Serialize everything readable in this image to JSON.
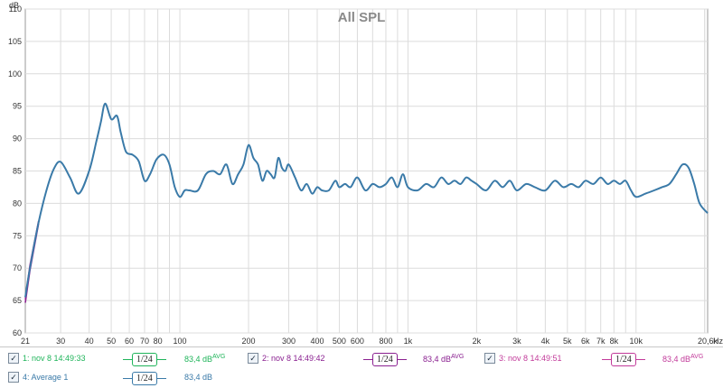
{
  "chart_data": {
    "type": "line",
    "title": "All SPL",
    "ylabel": "dB",
    "xunit": "Hz",
    "xscale": "log",
    "xlim": [
      21,
      20600
    ],
    "ylim": [
      60,
      110
    ],
    "y_ticks": [
      60,
      65,
      70,
      75,
      80,
      85,
      90,
      95,
      100,
      105,
      110
    ],
    "x_ticks": [
      {
        "v": 21,
        "label": "21"
      },
      {
        "v": 30,
        "label": "30"
      },
      {
        "v": 40,
        "label": "40"
      },
      {
        "v": 50,
        "label": "50"
      },
      {
        "v": 60,
        "label": "60"
      },
      {
        "v": 70,
        "label": "70"
      },
      {
        "v": 80,
        "label": "80"
      },
      {
        "v": 100,
        "label": "100"
      },
      {
        "v": 200,
        "label": "200"
      },
      {
        "v": 300,
        "label": "300"
      },
      {
        "v": 400,
        "label": "400"
      },
      {
        "v": 500,
        "label": "500"
      },
      {
        "v": 600,
        "label": "600"
      },
      {
        "v": 800,
        "label": "800"
      },
      {
        "v": 1000,
        "label": "1k"
      },
      {
        "v": 2000,
        "label": "2k"
      },
      {
        "v": 3000,
        "label": "3k"
      },
      {
        "v": 4000,
        "label": "4k"
      },
      {
        "v": 5000,
        "label": "5k"
      },
      {
        "v": 6000,
        "label": "6k"
      },
      {
        "v": 7000,
        "label": "7k"
      },
      {
        "v": 8000,
        "label": "8k"
      },
      {
        "v": 10000,
        "label": "10k"
      },
      {
        "v": 20600,
        "label": "20,6k"
      }
    ],
    "grid": true,
    "series": [
      {
        "name": "4: Average 1",
        "color": "#3a7aa8",
        "x": [
          21,
          22,
          24,
          26,
          28,
          30,
          33,
          36,
          40,
          43,
          45,
          47,
          50,
          53,
          55,
          58,
          62,
          66,
          70,
          74,
          79,
          85,
          90,
          95,
          100,
          105,
          110,
          120,
          130,
          140,
          150,
          160,
          170,
          180,
          190,
          200,
          210,
          220,
          230,
          240,
          250,
          260,
          270,
          280,
          290,
          300,
          320,
          340,
          360,
          380,
          400,
          420,
          450,
          480,
          500,
          530,
          560,
          600,
          650,
          700,
          750,
          800,
          850,
          900,
          950,
          1000,
          1100,
          1200,
          1300,
          1400,
          1500,
          1600,
          1700,
          1800,
          1900,
          2000,
          2200,
          2400,
          2600,
          2800,
          3000,
          3300,
          3600,
          4000,
          4400,
          4800,
          5200,
          5600,
          6000,
          6500,
          7000,
          7500,
          8000,
          8500,
          9000,
          9500,
          10000,
          11000,
          12000,
          13000,
          14000,
          15000,
          16000,
          17000,
          18000,
          19000,
          20600
        ],
        "y": [
          65.5,
          70,
          77,
          82,
          85.3,
          86.4,
          84,
          81.5,
          85,
          89.5,
          92.5,
          95.4,
          93,
          93.5,
          91,
          88,
          87.5,
          86.5,
          83.5,
          84.5,
          86.8,
          87.5,
          86,
          82.5,
          81,
          82,
          82,
          82,
          84.5,
          85,
          84.5,
          86,
          83,
          84.5,
          86,
          89,
          87,
          86,
          83.5,
          85,
          84.5,
          84,
          87,
          85.5,
          85,
          86,
          84,
          82,
          83,
          81.5,
          82.5,
          82,
          82,
          83.5,
          82.5,
          83,
          82.5,
          84,
          82,
          83,
          82.5,
          83,
          84,
          82.5,
          84.5,
          82.5,
          82,
          83,
          82.5,
          84,
          83,
          83.5,
          83,
          84,
          83.5,
          83,
          82,
          83.5,
          82.5,
          83.5,
          82,
          83,
          82.5,
          82,
          83.5,
          82.5,
          83,
          82.5,
          83.5,
          83,
          84,
          83,
          83.5,
          83,
          83.5,
          82,
          81,
          81.5,
          82,
          82.5,
          83,
          84.5,
          86,
          85.5,
          83,
          80,
          78.5
        ]
      },
      {
        "name": "1: nov 8 14:49:33",
        "color": "#1fb45a",
        "visible": false
      },
      {
        "name": "2: nov 8 14:49:42",
        "color": "#8a2090",
        "visible": false
      },
      {
        "name": "3: nov 8 14:49:51",
        "color": "#c23a9a",
        "visible": false
      }
    ]
  },
  "legend": [
    {
      "label": "1: nov 8 14:49:33",
      "checked": "✓",
      "smoothing": "1/24",
      "level": "83,4 dB",
      "sup": "AVG",
      "color": "#1fb45a"
    },
    {
      "label": "2: nov 8 14:49:42",
      "checked": "✓",
      "smoothing": "1/24",
      "level": "83,4 dB",
      "sup": "AVG",
      "color": "#8a2090"
    },
    {
      "label": "3: nov 8 14:49:51",
      "checked": "✓",
      "smoothing": "1/24",
      "level": "83,4 dB",
      "sup": "AVG",
      "color": "#c23a9a"
    },
    {
      "label": "4: Average 1",
      "checked": "✓",
      "smoothing": "1/24",
      "level": "83,4 dB",
      "sup": "",
      "color": "#3a7aa8"
    }
  ]
}
